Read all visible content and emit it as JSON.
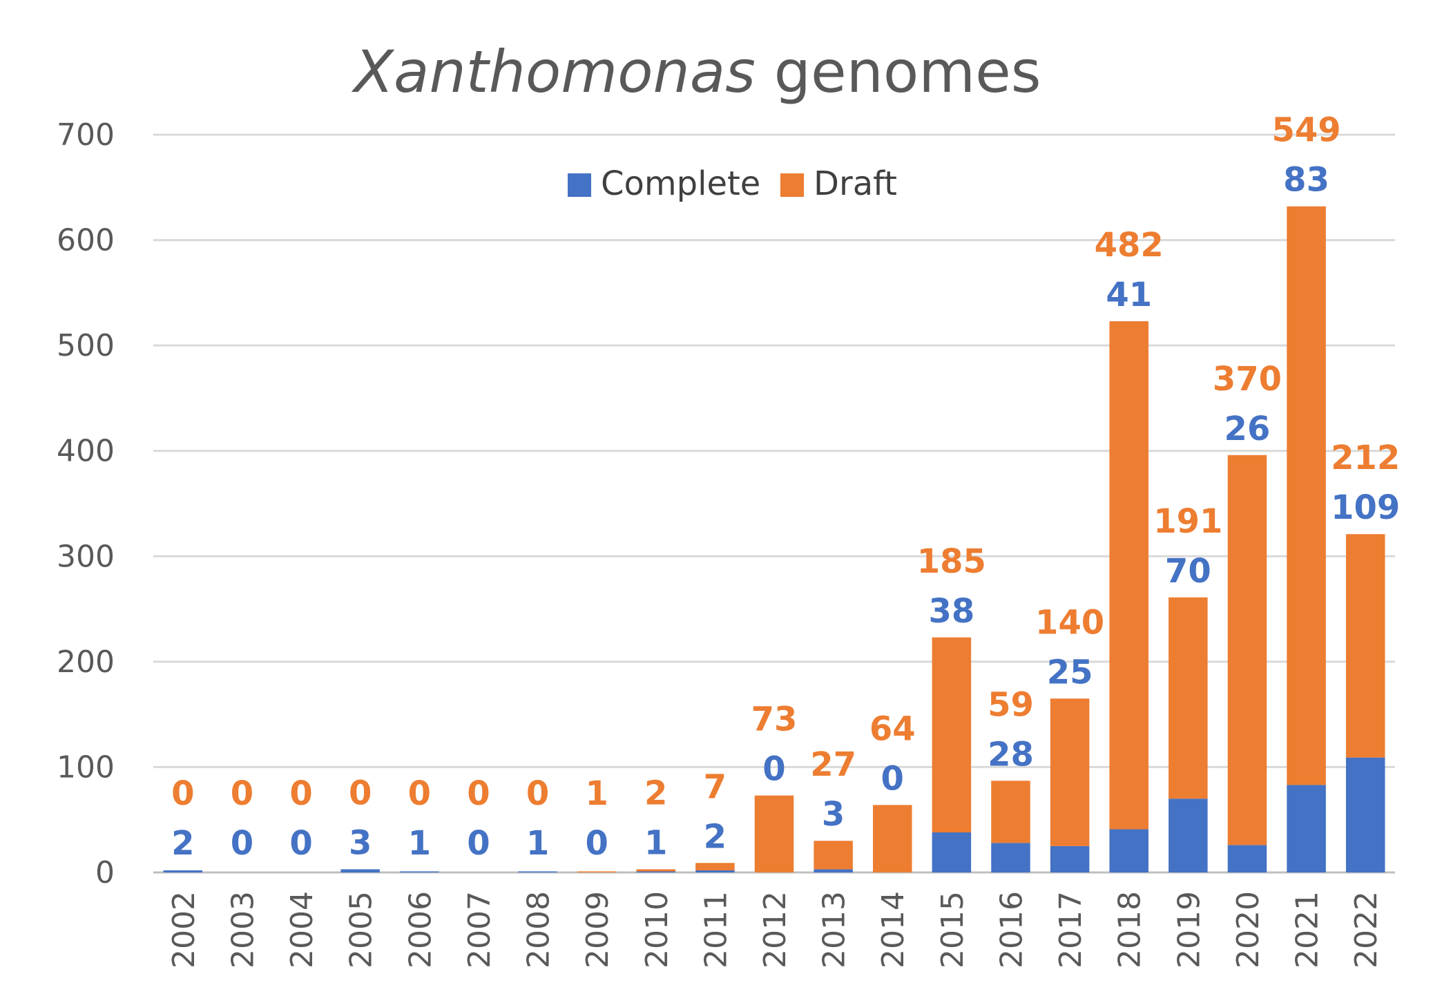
{
  "chart_data": {
    "type": "bar",
    "stacked": true,
    "title_italic": "Xanthomonas",
    "title_rest": " genomes",
    "xlabel": "",
    "ylabel": "",
    "ylim": [
      0,
      700
    ],
    "yticks": [
      0,
      100,
      200,
      300,
      400,
      500,
      600,
      700
    ],
    "grid": "horizontal",
    "legend_position": "top-center",
    "categories": [
      "2002",
      "2003",
      "2004",
      "2005",
      "2006",
      "2007",
      "2008",
      "2009",
      "2010",
      "2011",
      "2012",
      "2013",
      "2014",
      "2015",
      "2016",
      "2017",
      "2018",
      "2019",
      "2020",
      "2021",
      "2022"
    ],
    "series": [
      {
        "name": "Complete",
        "color": "#4472C4",
        "values": [
          2,
          0,
          0,
          3,
          1,
          0,
          1,
          0,
          1,
          2,
          0,
          3,
          0,
          38,
          28,
          25,
          41,
          70,
          26,
          83,
          109
        ]
      },
      {
        "name": "Draft",
        "color": "#ED7D31",
        "values": [
          0,
          0,
          0,
          0,
          0,
          0,
          0,
          1,
          2,
          7,
          73,
          27,
          64,
          185,
          59,
          140,
          482,
          191,
          370,
          549,
          212
        ]
      }
    ]
  }
}
